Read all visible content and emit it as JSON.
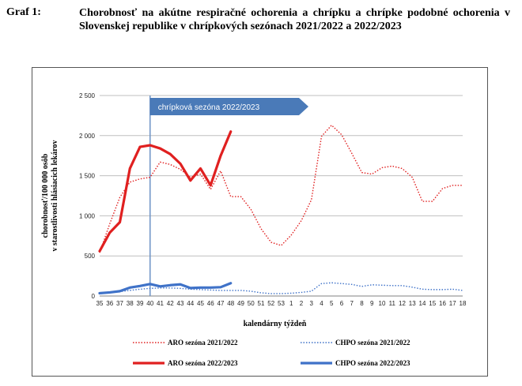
{
  "caption": {
    "label": "Graf 1:",
    "text": "Chorobnosť na akútne respiračné ochorenia a chrípku a chrípke podobné ochorenia v Slovenskej republike v chrípkových sezónach 2021/2022 a 2022/2023"
  },
  "colors": {
    "aro": "#e02020",
    "chpo": "#3f72c8",
    "season_banner": "#4a7ab8",
    "season_line": "#6d93c6",
    "grid": "#bfbfbf"
  },
  "chart_data": {
    "type": "line",
    "title": "",
    "xlabel": "kalendárny týždeň",
    "ylabel": [
      "chorobnosť/100 000 osôb",
      "v starostlivosti hlásiacich lekárov"
    ],
    "ylim": [
      0,
      2500
    ],
    "yticks": [
      0,
      500,
      1000,
      1500,
      2000,
      2500
    ],
    "ytick_labels": [
      "0",
      "500",
      "1 000",
      "1 500",
      "2 000",
      "2 500"
    ],
    "grid": "horizontal",
    "legend_position": "bottom",
    "categories": [
      "35",
      "36",
      "37",
      "38",
      "39",
      "40",
      "41",
      "42",
      "43",
      "44",
      "45",
      "46",
      "47",
      "48",
      "49",
      "50",
      "51",
      "52",
      "53",
      "1",
      "2",
      "3",
      "4",
      "5",
      "6",
      "7",
      "8",
      "9",
      "10",
      "11",
      "12",
      "13",
      "14",
      "15",
      "16",
      "17",
      "18"
    ],
    "annotation": {
      "text": "chrípková sezóna 2022/2023",
      "start_week": "40"
    },
    "series": [
      {
        "name": "ARO sezóna 2021/2022",
        "style": "dotted",
        "color": "#e02020",
        "values": [
          540,
          900,
          1230,
          1420,
          1460,
          1480,
          1670,
          1640,
          1580,
          1480,
          1520,
          1330,
          1560,
          1240,
          1240,
          1080,
          840,
          670,
          630,
          760,
          940,
          1200,
          1990,
          2130,
          2010,
          1780,
          1540,
          1520,
          1600,
          1620,
          1590,
          1480,
          1180,
          1180,
          1340,
          1380,
          1380
        ]
      },
      {
        "name": "CHPO sezóna 2021/2022",
        "style": "dotted",
        "color": "#3f72c8",
        "values": [
          35,
          45,
          55,
          70,
          85,
          95,
          100,
          100,
          95,
          85,
          80,
          75,
          70,
          70,
          70,
          60,
          40,
          30,
          30,
          35,
          45,
          60,
          155,
          165,
          155,
          145,
          120,
          140,
          135,
          130,
          130,
          110,
          85,
          80,
          80,
          85,
          70
        ]
      },
      {
        "name": "ARO sezóna 2022/2023",
        "style": "solid",
        "color": "#e02020",
        "values": [
          560,
          790,
          920,
          1590,
          1860,
          1880,
          1840,
          1770,
          1650,
          1440,
          1590,
          1380,
          1750,
          2050,
          null,
          null,
          null,
          null,
          null,
          null,
          null,
          null,
          null,
          null,
          null,
          null,
          null,
          null,
          null,
          null,
          null,
          null,
          null,
          null,
          null,
          null,
          null
        ]
      },
      {
        "name": "CHPO sezóna 2022/2023",
        "style": "solid",
        "color": "#3f72c8",
        "values": [
          35,
          45,
          60,
          105,
          125,
          150,
          120,
          135,
          145,
          100,
          105,
          105,
          110,
          160,
          null,
          null,
          null,
          null,
          null,
          null,
          null,
          null,
          null,
          null,
          null,
          null,
          null,
          null,
          null,
          null,
          null,
          null,
          null,
          null,
          null,
          null,
          null
        ]
      }
    ]
  }
}
